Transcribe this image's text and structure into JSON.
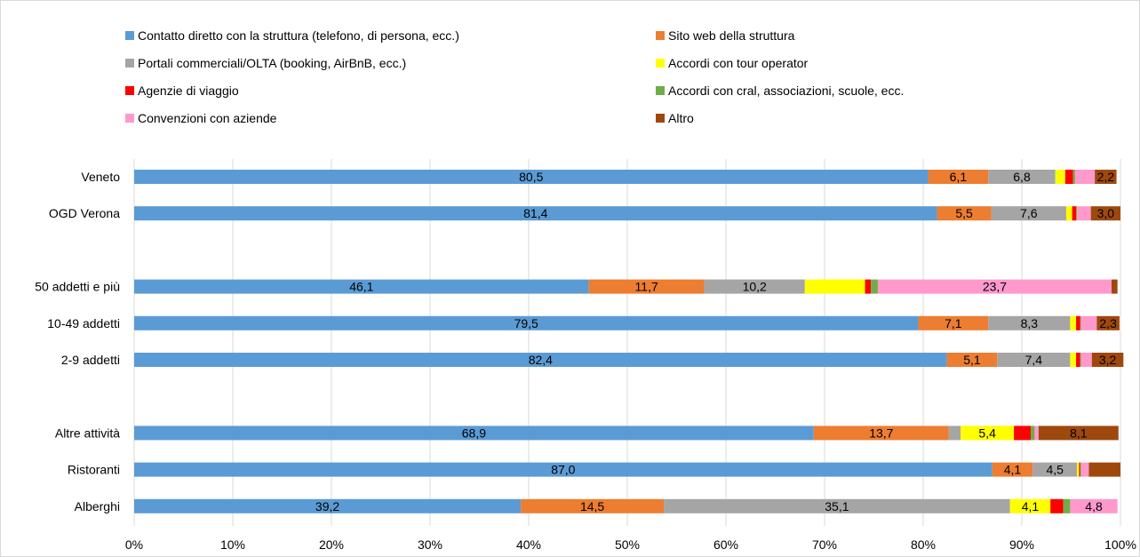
{
  "chart_data": {
    "type": "bar",
    "orientation": "horizontal",
    "stacked": "percent",
    "title": "",
    "xlabel": "",
    "ylabel": "",
    "xlim": [
      0,
      100
    ],
    "x_ticks": [
      "0%",
      "10%",
      "20%",
      "30%",
      "40%",
      "50%",
      "60%",
      "70%",
      "80%",
      "90%",
      "100%"
    ],
    "grid": "vertical",
    "legend_position": "top",
    "categories": [
      "Veneto",
      "OGD Verona",
      "",
      "50 addetti e più",
      "10-49  addetti",
      "2-9 addetti",
      "",
      "Altre attività",
      "Ristoranti",
      "Alberghi"
    ],
    "series": [
      {
        "name": "Contatto diretto con la struttura (telefono, di persona, ecc.)",
        "color": "#5b9bd5",
        "values": [
          80.5,
          81.4,
          null,
          46.1,
          79.5,
          82.4,
          null,
          68.9,
          87.0,
          39.2
        ],
        "labels": [
          "80,5",
          "81,4",
          null,
          "46,1",
          "79,5",
          "82,4",
          null,
          "68,9",
          "87,0",
          "39,2"
        ]
      },
      {
        "name": "Sito web della struttura",
        "color": "#ed7d31",
        "values": [
          6.1,
          5.5,
          null,
          11.7,
          7.1,
          5.1,
          null,
          13.7,
          4.1,
          14.5
        ],
        "labels": [
          "6,1",
          "5,5",
          null,
          "11,7",
          "7,1",
          "5,1",
          null,
          "13,7",
          "4,1",
          "14,5"
        ]
      },
      {
        "name": "Portali commerciali/OLTA (booking, AirBnB, ecc.)",
        "color": "#a5a5a5",
        "values": [
          6.8,
          7.6,
          null,
          10.2,
          8.3,
          7.4,
          null,
          1.2,
          4.5,
          35.1
        ],
        "labels": [
          "6,8",
          "7,6",
          null,
          "10,2",
          "8,3",
          "7,4",
          null,
          null,
          "4,5",
          "35,1"
        ]
      },
      {
        "name": "Accordi con tour operator",
        "color": "#ffff00",
        "values": [
          1.0,
          0.6,
          null,
          6.1,
          0.6,
          0.6,
          null,
          5.4,
          0.2,
          4.1
        ],
        "labels": [
          null,
          null,
          null,
          null,
          null,
          null,
          null,
          "5,4",
          null,
          "4,1"
        ]
      },
      {
        "name": "Agenzie di viaggio",
        "color": "#ff0000",
        "values": [
          0.8,
          0.4,
          null,
          0.6,
          0.4,
          0.4,
          null,
          1.7,
          0.1,
          1.3
        ],
        "labels": [
          null,
          null,
          null,
          null,
          null,
          null,
          null,
          null,
          null,
          null
        ]
      },
      {
        "name": "Accordi con cral, associazioni, scuole, ecc.",
        "color": "#70ad47",
        "values": [
          0.2,
          0.1,
          null,
          0.7,
          0.1,
          0.1,
          null,
          0.4,
          0.1,
          0.7
        ],
        "labels": [
          null,
          null,
          null,
          null,
          null,
          null,
          null,
          null,
          null,
          null
        ]
      },
      {
        "name": "Convenzioni con aziende",
        "color": "#ff99cc",
        "values": [
          2.0,
          1.4,
          null,
          23.7,
          1.6,
          1.1,
          null,
          0.4,
          0.8,
          4.8
        ],
        "labels": [
          null,
          null,
          null,
          "23,7",
          null,
          null,
          null,
          null,
          null,
          "4,8"
        ]
      },
      {
        "name": "Altro",
        "color": "#9e480e",
        "values": [
          2.2,
          3.0,
          null,
          0.6,
          2.3,
          3.2,
          null,
          8.1,
          3.2,
          0.0
        ],
        "labels": [
          "2,2",
          "3,0",
          null,
          null,
          "2,3",
          "3,2",
          null,
          "8,1",
          null,
          null
        ]
      }
    ]
  }
}
